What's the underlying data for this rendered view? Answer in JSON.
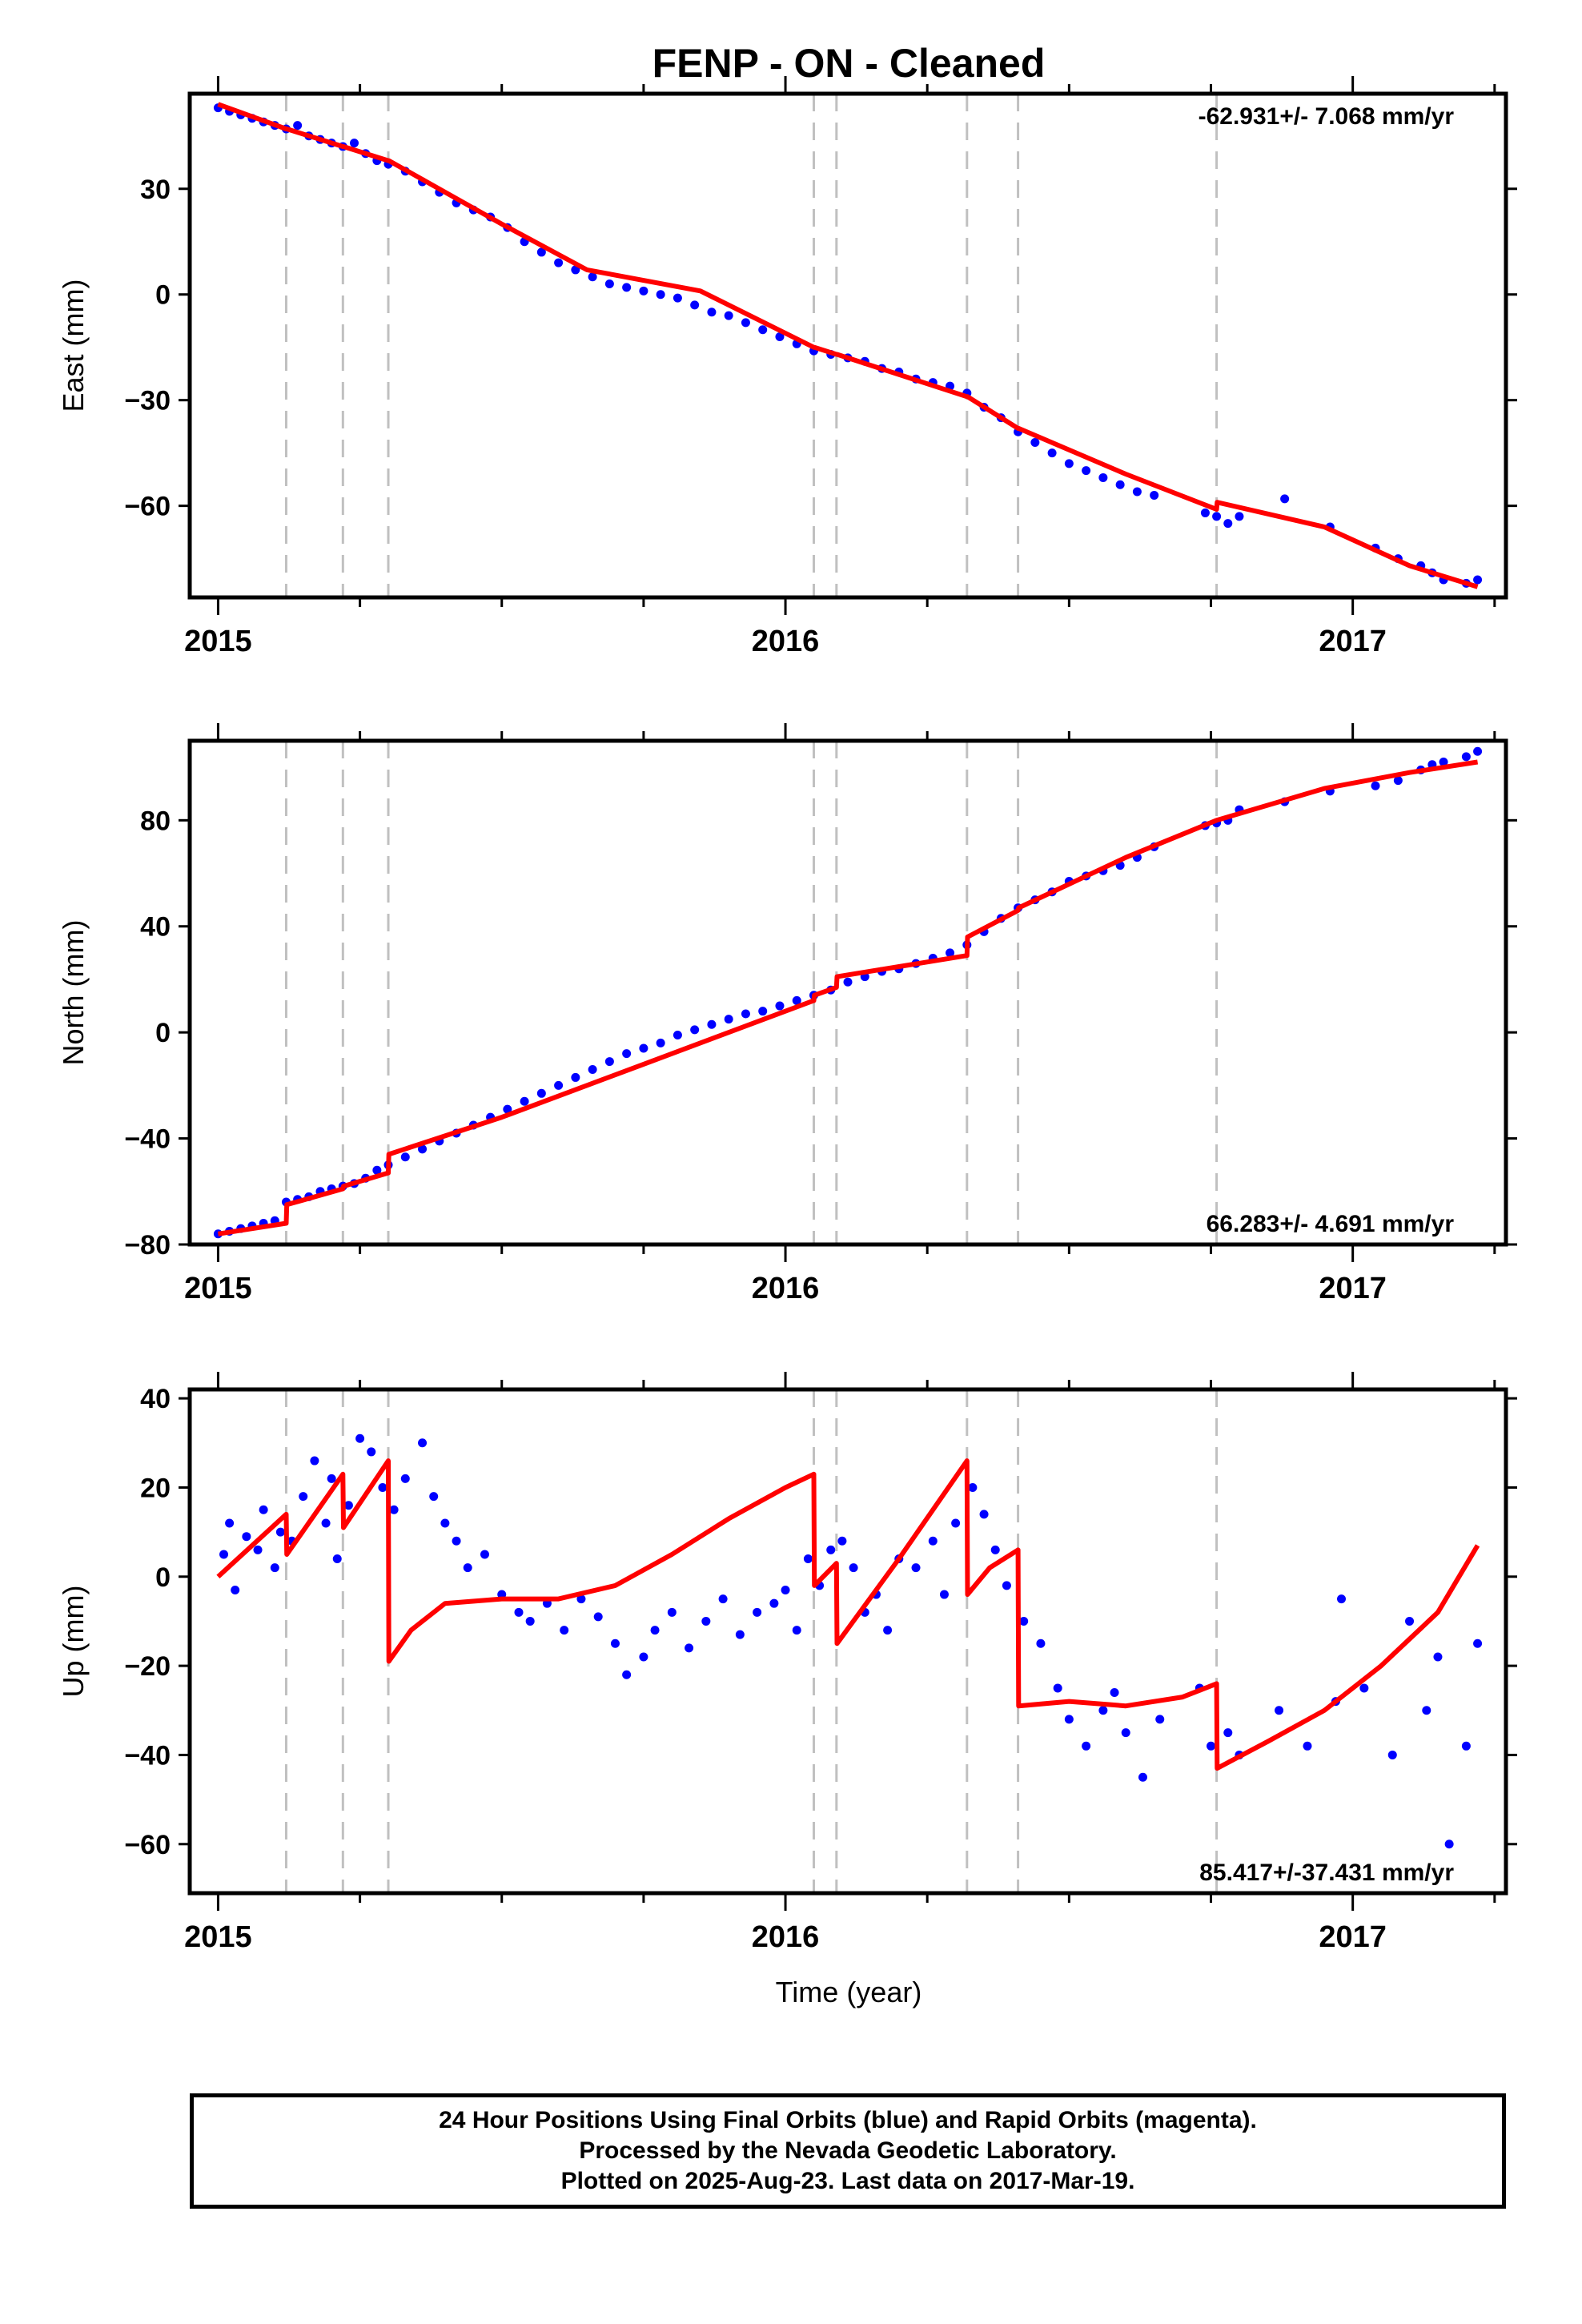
{
  "title": "FENP  - ON - Cleaned",
  "x_axis": {
    "label": "Time (year)",
    "ticks": [
      "2015",
      "2016",
      "2017"
    ],
    "range": [
      2014.95,
      2017.27
    ]
  },
  "colors": {
    "data_points": "#0000ff",
    "model_line": "#ff0000",
    "event_lines": "#c0c0c0",
    "frame": "#000000"
  },
  "event_epochs": [
    2015.12,
    2015.22,
    2015.3,
    2016.05,
    2016.09,
    2016.32,
    2016.41,
    2016.76
  ],
  "footer": {
    "line1": "24 Hour Positions Using Final Orbits (blue) and Rapid Orbits (magenta).",
    "line2": "Processed by the Nevada Geodetic Laboratory.",
    "line3": "Plotted on 2025-Aug-23. Last data on 2017-Mar-19."
  },
  "chart_data": [
    {
      "type": "scatter",
      "component": "east",
      "ylabel": "East (mm)",
      "rate_label": "-62.931+/- 7.068 mm/yr",
      "rate_position": "top-right",
      "ylim": [
        -86,
        57
      ],
      "yticks": [
        30,
        0,
        -30,
        -60
      ],
      "ytick_labels": [
        "30",
        "0",
        "−30",
        "−60"
      ],
      "grid": false,
      "model_line": {
        "x": [
          2015.0,
          2015.12,
          2015.121,
          2015.22,
          2015.221,
          2015.3,
          2015.301,
          2015.5,
          2015.65,
          2015.85,
          2016.05,
          2016.051,
          2016.09,
          2016.091,
          2016.32,
          2016.321,
          2016.41,
          2016.411,
          2016.6,
          2016.76,
          2016.761,
          2016.95,
          2017.1,
          2017.22
        ],
        "y": [
          54,
          47,
          47,
          42,
          42,
          38,
          38,
          20,
          7,
          1,
          -15,
          -15,
          -17,
          -17,
          -29,
          -29,
          -38,
          -38,
          -51,
          -61,
          -59,
          -66,
          -77,
          -83
        ]
      },
      "points": {
        "x": [
          2015.0,
          2015.02,
          2015.04,
          2015.06,
          2015.08,
          2015.1,
          2015.12,
          2015.14,
          2015.16,
          2015.18,
          2015.2,
          2015.22,
          2015.24,
          2015.26,
          2015.28,
          2015.3,
          2015.33,
          2015.36,
          2015.39,
          2015.42,
          2015.45,
          2015.48,
          2015.51,
          2015.54,
          2015.57,
          2015.6,
          2015.63,
          2015.66,
          2015.69,
          2015.72,
          2015.75,
          2015.78,
          2015.81,
          2015.84,
          2015.87,
          2015.9,
          2015.93,
          2015.96,
          2015.99,
          2016.02,
          2016.05,
          2016.08,
          2016.11,
          2016.14,
          2016.17,
          2016.2,
          2016.23,
          2016.26,
          2016.29,
          2016.32,
          2016.35,
          2016.38,
          2016.41,
          2016.44,
          2016.47,
          2016.5,
          2016.53,
          2016.56,
          2016.59,
          2016.62,
          2016.65,
          2016.74,
          2016.76,
          2016.78,
          2016.8,
          2016.88,
          2016.96,
          2017.04,
          2017.08,
          2017.12,
          2017.14,
          2017.16,
          2017.2,
          2017.22
        ],
        "y": [
          53,
          52,
          51,
          50,
          49,
          48,
          47,
          48,
          45,
          44,
          43,
          42,
          43,
          40,
          38,
          37,
          35,
          32,
          29,
          26,
          24,
          22,
          19,
          15,
          12,
          9,
          7,
          5,
          3,
          2,
          1,
          0,
          -1,
          -3,
          -5,
          -6,
          -8,
          -10,
          -12,
          -14,
          -16,
          -17,
          -18,
          -19,
          -21,
          -22,
          -24,
          -25,
          -26,
          -28,
          -32,
          -35,
          -39,
          -42,
          -45,
          -48,
          -50,
          -52,
          -54,
          -56,
          -57,
          -62,
          -63,
          -65,
          -63,
          -58,
          -66,
          -72,
          -75,
          -77,
          -79,
          -81,
          -82,
          -81
        ]
      }
    },
    {
      "type": "scatter",
      "component": "north",
      "ylabel": "North (mm)",
      "rate_label": "66.283+/- 4.691 mm/yr",
      "rate_position": "bottom-right",
      "ylim": [
        -80,
        110
      ],
      "yticks": [
        80,
        40,
        0,
        -40,
        -80
      ],
      "ytick_labels": [
        "80",
        "40",
        "0",
        "−40",
        "−80"
      ],
      "grid": false,
      "model_line": {
        "x": [
          2015.0,
          2015.12,
          2015.121,
          2015.22,
          2015.221,
          2015.3,
          2015.301,
          2015.5,
          2015.75,
          2016.05,
          2016.051,
          2016.09,
          2016.091,
          2016.32,
          2016.321,
          2016.41,
          2016.411,
          2016.6,
          2016.76,
          2016.95,
          2017.1,
          2017.22
        ],
        "y": [
          -76,
          -72,
          -65,
          -59,
          -58,
          -53,
          -46,
          -32,
          -12,
          12,
          14,
          17,
          21,
          29,
          36,
          46,
          47,
          66,
          80,
          92,
          98,
          102
        ]
      },
      "points": {
        "x": [
          2015.0,
          2015.02,
          2015.04,
          2015.06,
          2015.08,
          2015.1,
          2015.12,
          2015.14,
          2015.16,
          2015.18,
          2015.2,
          2015.22,
          2015.24,
          2015.26,
          2015.28,
          2015.3,
          2015.33,
          2015.36,
          2015.39,
          2015.42,
          2015.45,
          2015.48,
          2015.51,
          2015.54,
          2015.57,
          2015.6,
          2015.63,
          2015.66,
          2015.69,
          2015.72,
          2015.75,
          2015.78,
          2015.81,
          2015.84,
          2015.87,
          2015.9,
          2015.93,
          2015.96,
          2015.99,
          2016.02,
          2016.05,
          2016.08,
          2016.11,
          2016.14,
          2016.17,
          2016.2,
          2016.23,
          2016.26,
          2016.29,
          2016.32,
          2016.35,
          2016.38,
          2016.41,
          2016.44,
          2016.47,
          2016.5,
          2016.53,
          2016.56,
          2016.59,
          2016.62,
          2016.65,
          2016.74,
          2016.76,
          2016.78,
          2016.8,
          2016.88,
          2016.96,
          2017.04,
          2017.08,
          2017.12,
          2017.14,
          2017.16,
          2017.2,
          2017.22
        ],
        "y": [
          -76,
          -75,
          -74,
          -73,
          -72,
          -71,
          -64,
          -63,
          -62,
          -60,
          -59,
          -58,
          -57,
          -55,
          -52,
          -50,
          -47,
          -44,
          -41,
          -38,
          -35,
          -32,
          -29,
          -26,
          -23,
          -20,
          -17,
          -14,
          -11,
          -8,
          -6,
          -4,
          -1,
          1,
          3,
          5,
          7,
          8,
          10,
          12,
          14,
          16,
          19,
          21,
          23,
          24,
          26,
          28,
          30,
          33,
          38,
          43,
          47,
          50,
          53,
          57,
          59,
          61,
          63,
          66,
          70,
          78,
          79,
          80,
          84,
          87,
          91,
          93,
          95,
          99,
          101,
          102,
          104,
          106
        ]
      }
    },
    {
      "type": "scatter",
      "component": "up",
      "ylabel": "Up (mm)",
      "rate_label": "85.417+/-37.431 mm/yr",
      "rate_position": "bottom-right",
      "ylim": [
        -71,
        42
      ],
      "yticks": [
        40,
        20,
        0,
        -20,
        -40,
        -60
      ],
      "ytick_labels": [
        "40",
        "20",
        "0",
        "−20",
        "−40",
        "−60"
      ],
      "grid": false,
      "model_line": {
        "x": [
          2015.0,
          2015.12,
          2015.121,
          2015.22,
          2015.221,
          2015.3,
          2015.301,
          2015.34,
          2015.4,
          2015.5,
          2015.6,
          2015.7,
          2015.8,
          2015.9,
          2016.0,
          2016.05,
          2016.051,
          2016.09,
          2016.091,
          2016.2,
          2016.32,
          2016.321,
          2016.36,
          2016.41,
          2016.411,
          2016.5,
          2016.6,
          2016.7,
          2016.76,
          2016.761,
          2016.85,
          2016.95,
          2017.05,
          2017.15,
          2017.22
        ],
        "y": [
          0,
          14,
          5,
          23,
          11,
          26,
          -19,
          -12,
          -6,
          -5,
          -5,
          -2,
          5,
          13,
          20,
          23,
          -2,
          3,
          -15,
          4,
          26,
          -4,
          2,
          6,
          -29,
          -28,
          -29,
          -27,
          -24,
          -43,
          -37,
          -30,
          -20,
          -8,
          7
        ]
      },
      "points": {
        "x": [
          2015.01,
          2015.02,
          2015.03,
          2015.05,
          2015.07,
          2015.08,
          2015.1,
          2015.11,
          2015.13,
          2015.15,
          2015.17,
          2015.19,
          2015.2,
          2015.21,
          2015.23,
          2015.25,
          2015.27,
          2015.29,
          2015.31,
          2015.33,
          2015.36,
          2015.38,
          2015.4,
          2015.42,
          2015.44,
          2015.47,
          2015.5,
          2015.53,
          2015.55,
          2015.58,
          2015.61,
          2015.64,
          2015.67,
          2015.7,
          2015.72,
          2015.75,
          2015.77,
          2015.8,
          2015.83,
          2015.86,
          2015.89,
          2015.92,
          2015.95,
          2015.98,
          2016.0,
          2016.02,
          2016.04,
          2016.06,
          2016.08,
          2016.1,
          2016.12,
          2016.14,
          2016.16,
          2016.18,
          2016.2,
          2016.23,
          2016.26,
          2016.28,
          2016.3,
          2016.33,
          2016.35,
          2016.37,
          2016.39,
          2016.42,
          2016.45,
          2016.48,
          2016.5,
          2016.53,
          2016.56,
          2016.58,
          2016.6,
          2016.63,
          2016.66,
          2016.73,
          2016.75,
          2016.78,
          2016.8,
          2016.87,
          2016.92,
          2016.97,
          2016.98,
          2017.02,
          2017.07,
          2017.1,
          2017.13,
          2017.15,
          2017.17,
          2017.2,
          2017.22
        ],
        "y": [
          5,
          12,
          -3,
          9,
          6,
          15,
          2,
          10,
          8,
          18,
          26,
          12,
          22,
          4,
          16,
          31,
          28,
          20,
          15,
          22,
          30,
          18,
          12,
          8,
          2,
          5,
          -4,
          -8,
          -10,
          -6,
          -12,
          -5,
          -9,
          -15,
          -22,
          -18,
          -12,
          -8,
          -16,
          -10,
          -5,
          -13,
          -8,
          -6,
          -3,
          -12,
          4,
          -2,
          6,
          8,
          2,
          -8,
          -4,
          -12,
          4,
          2,
          8,
          -4,
          12,
          20,
          14,
          6,
          -2,
          -10,
          -15,
          -25,
          -32,
          -38,
          -30,
          -26,
          -35,
          -45,
          -32,
          -25,
          -38,
          -35,
          -40,
          -30,
          -38,
          -28,
          -5,
          -25,
          -40,
          -10,
          -30,
          -18,
          -60,
          -38,
          -15
        ]
      }
    }
  ]
}
